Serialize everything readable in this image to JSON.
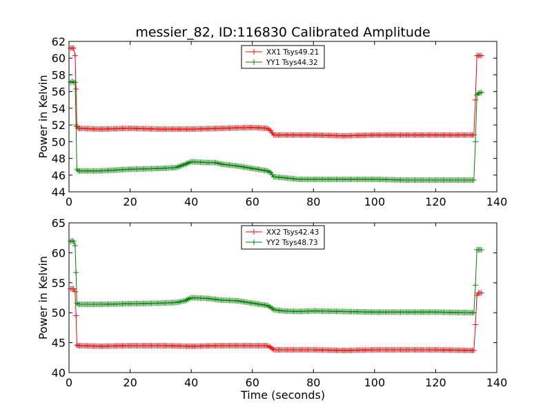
{
  "chart_data": [
    {
      "type": "line",
      "title": "messier_82, ID:116830 Calibrated Amplitude",
      "xlabel": "",
      "ylabel": "Power in Kelvin",
      "xlim": [
        0,
        140
      ],
      "ylim": [
        44,
        62
      ],
      "xticks": [
        0,
        20,
        40,
        60,
        80,
        100,
        120,
        140
      ],
      "yticks": [
        44,
        46,
        48,
        50,
        52,
        54,
        56,
        58,
        60,
        62
      ],
      "legend_position": "upper center",
      "series": [
        {
          "name": "XX1 Tsys49.21",
          "color": "#ff0000",
          "marker": "+",
          "points": [
            [
              0.5,
              61.2
            ],
            [
              1,
              61.2
            ],
            [
              1.5,
              61.2
            ],
            [
              2,
              60.3
            ],
            [
              2.3,
              56.3
            ],
            [
              2.6,
              51.8
            ],
            [
              3,
              51.6
            ],
            [
              10,
              51.5
            ],
            [
              20,
              51.6
            ],
            [
              30,
              51.5
            ],
            [
              40,
              51.5
            ],
            [
              50,
              51.6
            ],
            [
              60,
              51.7
            ],
            [
              65,
              51.6
            ],
            [
              66,
              51.3
            ],
            [
              67,
              50.8
            ],
            [
              70,
              50.8
            ],
            [
              80,
              50.8
            ],
            [
              90,
              50.7
            ],
            [
              100,
              50.8
            ],
            [
              110,
              50.8
            ],
            [
              120,
              50.8
            ],
            [
              132.5,
              50.8
            ],
            [
              133,
              55.0
            ],
            [
              133.5,
              60.3
            ],
            [
              134,
              60.3
            ],
            [
              135,
              60.3
            ]
          ]
        },
        {
          "name": "YY1 Tsys44.32",
          "color": "#008000",
          "marker": "+",
          "points": [
            [
              0.5,
              57.1
            ],
            [
              1,
              57.2
            ],
            [
              1.5,
              57.1
            ],
            [
              2,
              57.1
            ],
            [
              2.3,
              52.0
            ],
            [
              2.6,
              46.7
            ],
            [
              3,
              46.5
            ],
            [
              10,
              46.5
            ],
            [
              20,
              46.7
            ],
            [
              30,
              46.8
            ],
            [
              35,
              46.9
            ],
            [
              38,
              47.3
            ],
            [
              40,
              47.6
            ],
            [
              45,
              47.5
            ],
            [
              48,
              47.5
            ],
            [
              50,
              47.3
            ],
            [
              55,
              47.1
            ],
            [
              60,
              46.8
            ],
            [
              65,
              46.5
            ],
            [
              66,
              46.3
            ],
            [
              67,
              45.8
            ],
            [
              70,
              45.7
            ],
            [
              75,
              45.5
            ],
            [
              80,
              45.5
            ],
            [
              90,
              45.5
            ],
            [
              100,
              45.5
            ],
            [
              110,
              45.4
            ],
            [
              120,
              45.4
            ],
            [
              132.5,
              45.4
            ],
            [
              133,
              50.0
            ],
            [
              133.5,
              55.6
            ],
            [
              134,
              55.8
            ],
            [
              135,
              55.9
            ]
          ]
        }
      ]
    },
    {
      "type": "line",
      "title": "",
      "xlabel": "Time (seconds)",
      "ylabel": "Power in Kelvin",
      "xlim": [
        0,
        140
      ],
      "ylim": [
        40,
        65
      ],
      "xticks": [
        0,
        20,
        40,
        60,
        80,
        100,
        120,
        140
      ],
      "yticks": [
        40,
        45,
        50,
        55,
        60,
        65
      ],
      "legend_position": "upper center",
      "series": [
        {
          "name": "XX2 Tsys42.43",
          "color": "#ff0000",
          "marker": "+",
          "points": [
            [
              0.5,
              54.0
            ],
            [
              1,
              54.0
            ],
            [
              1.5,
              54.0
            ],
            [
              2,
              53.5
            ],
            [
              2.3,
              49.5
            ],
            [
              2.6,
              44.6
            ],
            [
              3,
              44.5
            ],
            [
              10,
              44.4
            ],
            [
              20,
              44.5
            ],
            [
              30,
              44.5
            ],
            [
              40,
              44.4
            ],
            [
              50,
              44.5
            ],
            [
              60,
              44.5
            ],
            [
              65,
              44.5
            ],
            [
              66,
              44.2
            ],
            [
              67,
              43.8
            ],
            [
              70,
              43.8
            ],
            [
              80,
              43.8
            ],
            [
              90,
              43.7
            ],
            [
              100,
              43.8
            ],
            [
              110,
              43.8
            ],
            [
              120,
              43.8
            ],
            [
              132.5,
              43.7
            ],
            [
              133,
              48.0
            ],
            [
              133.5,
              52.9
            ],
            [
              134,
              53.3
            ],
            [
              135,
              53.3
            ]
          ]
        },
        {
          "name": "YY2 Tsys48.73",
          "color": "#008000",
          "marker": "+",
          "points": [
            [
              0.5,
              61.9
            ],
            [
              1,
              62.0
            ],
            [
              1.5,
              61.9
            ],
            [
              2,
              61.2
            ],
            [
              2.3,
              56.7
            ],
            [
              2.6,
              51.6
            ],
            [
              3,
              51.4
            ],
            [
              10,
              51.4
            ],
            [
              20,
              51.5
            ],
            [
              30,
              51.6
            ],
            [
              35,
              51.7
            ],
            [
              38,
              52.0
            ],
            [
              40,
              52.5
            ],
            [
              45,
              52.4
            ],
            [
              50,
              52.1
            ],
            [
              55,
              52.0
            ],
            [
              60,
              51.6
            ],
            [
              65,
              51.2
            ],
            [
              66,
              50.9
            ],
            [
              67,
              50.5
            ],
            [
              70,
              50.3
            ],
            [
              75,
              50.2
            ],
            [
              80,
              50.3
            ],
            [
              90,
              50.2
            ],
            [
              100,
              50.1
            ],
            [
              110,
              50.1
            ],
            [
              120,
              50.1
            ],
            [
              132.5,
              50.0
            ],
            [
              133,
              54.6
            ],
            [
              133.5,
              60.5
            ],
            [
              134,
              60.5
            ],
            [
              135,
              60.5
            ]
          ]
        }
      ]
    }
  ]
}
